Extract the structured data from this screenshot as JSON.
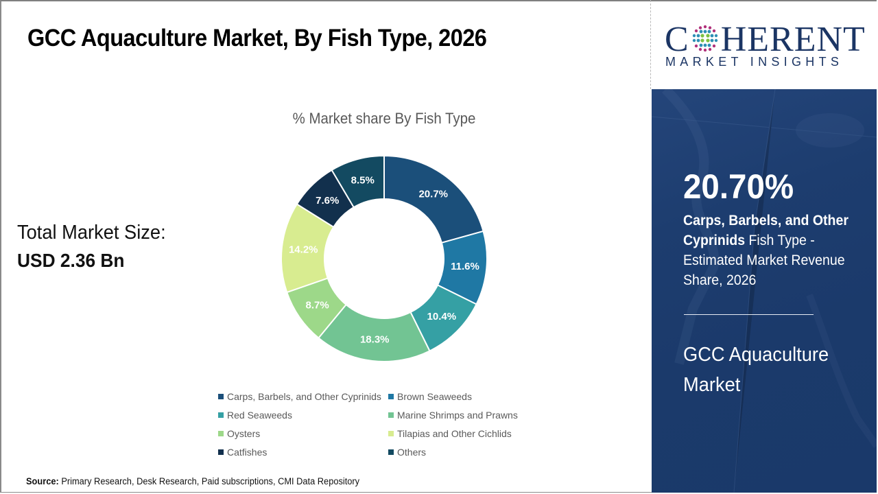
{
  "header": {
    "title": "GCC Aquaculture Market, By Fish Type, 2026"
  },
  "summary": {
    "total_label": "Total Market Size:",
    "total_value": "USD 2.36 Bn"
  },
  "logo": {
    "main_prefix": "C",
    "main_suffix": "HERENT",
    "sub": "MARKET INSIGHTS"
  },
  "panel": {
    "highlight_value": "20.70%",
    "highlight_segment": "Carps, Barbels, and Other Cyprinids",
    "highlight_desc": " Fish Type - Estimated Market Revenue Share, 2026",
    "market_name": "GCC Aquaculture Market"
  },
  "source": {
    "label": "Source:",
    "text": " Primary Research, Desk Research, Paid subscriptions, CMI Data Repository"
  },
  "colors": {
    "panel_bg": "#1d3d6f",
    "logo_navy": "#1b3564"
  },
  "chart_data": {
    "type": "pie",
    "subtype": "donut",
    "title": "% Market share By Fish Type",
    "unit": "%",
    "start_angle": "12 o'clock, clockwise",
    "legend_position": "bottom",
    "categories": [
      "Carps, Barbels, and Other Cyprinids",
      "Brown Seaweeds",
      "Red Seaweeds",
      "Marine Shrimps and Prawns",
      "Oysters",
      "Tilapias and Other Cichlids",
      "Catfishes",
      "Others"
    ],
    "values": [
      20.7,
      11.6,
      10.4,
      18.3,
      8.7,
      14.2,
      7.6,
      8.5
    ],
    "labels": [
      "20.7%",
      "11.6%",
      "10.4%",
      "18.3%",
      "8.7%",
      "14.2%",
      "7.6%",
      "8.5%"
    ],
    "colors": [
      "#1b4f7a",
      "#1f78a4",
      "#35a0a4",
      "#72c493",
      "#9dd889",
      "#d8ec90",
      "#12304d",
      "#134a61"
    ]
  }
}
